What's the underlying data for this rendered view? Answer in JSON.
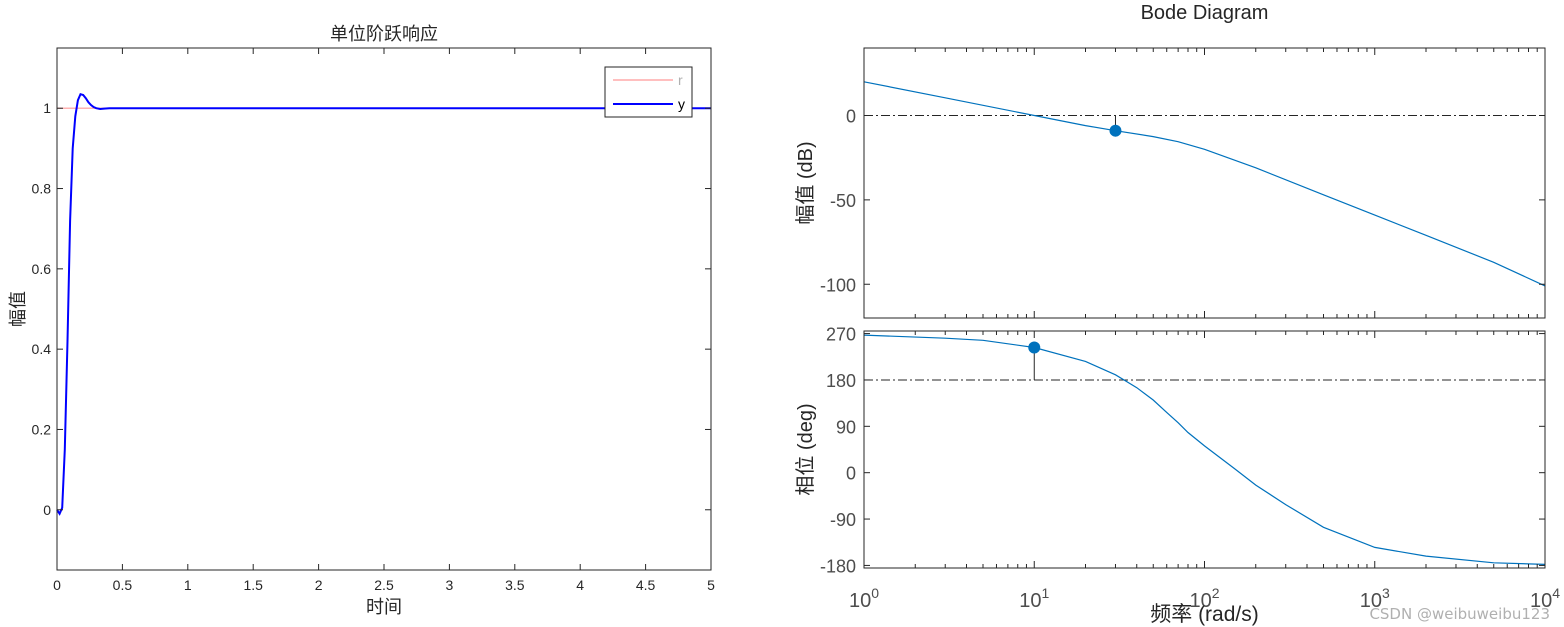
{
  "chart_data": [
    {
      "type": "line",
      "title": "单位阶跃响应",
      "xlabel": "时间",
      "ylabel": "幅值",
      "xlim": [
        0,
        5
      ],
      "ylim": [
        -0.15,
        1.15
      ],
      "xticks": [
        "0",
        "0.5",
        "1",
        "1.5",
        "2",
        "2.5",
        "3",
        "3.5",
        "4",
        "4.5",
        "5"
      ],
      "yticks": [
        "0",
        "0.2",
        "0.4",
        "0.6",
        "0.8",
        "1"
      ],
      "grid": false,
      "legend": {
        "placement": "top-right"
      },
      "series": [
        {
          "name": "r",
          "color": "#ff9999",
          "style": "solid",
          "x": [
            0,
            5
          ],
          "y": [
            1,
            1
          ]
        },
        {
          "name": "y",
          "color": "#0000ff",
          "style": "solid",
          "x": [
            0,
            0.02,
            0.04,
            0.06,
            0.08,
            0.1,
            0.12,
            0.14,
            0.16,
            0.18,
            0.2,
            0.22,
            0.24,
            0.26,
            0.28,
            0.3,
            0.33,
            0.36,
            0.4,
            0.5,
            1,
            2,
            3,
            4,
            5
          ],
          "y": [
            0,
            -0.01,
            0.005,
            0.15,
            0.42,
            0.72,
            0.9,
            0.98,
            1.02,
            1.035,
            1.033,
            1.025,
            1.015,
            1.008,
            1.003,
            1.0,
            0.998,
            0.999,
            1.0,
            1.0,
            1.0,
            1.0,
            1.0,
            1.0,
            1.0
          ]
        }
      ]
    },
    {
      "type": "line",
      "title": "Bode Diagram",
      "xlabel": "频率  (rad/s)",
      "xscale": "log",
      "xlim": [
        1,
        10000
      ],
      "xticks": [
        {
          "base": "10",
          "exp": "0"
        },
        {
          "base": "10",
          "exp": "1"
        },
        {
          "base": "10",
          "exp": "2"
        },
        {
          "base": "10",
          "exp": "3"
        },
        {
          "base": "10",
          "exp": "4"
        }
      ],
      "panels": [
        {
          "ylabel": "幅值 (dB)",
          "ylim": [
            -120,
            40
          ],
          "yticks": [
            "0",
            "-50",
            "-100"
          ],
          "reference": {
            "value": 0
          },
          "marker": {
            "x": 30,
            "y": -9,
            "line_to": 0
          },
          "series": [
            {
              "color": "#0072bd",
              "x": [
                1,
                3,
                10,
                20,
                30,
                50,
                70,
                100,
                200,
                500,
                1000,
                2000,
                5000,
                10000
              ],
              "y": [
                20,
                10.5,
                0,
                -6,
                -9,
                -12.5,
                -15.5,
                -20,
                -31,
                -47,
                -59,
                -71,
                -87,
                -101
              ]
            }
          ]
        },
        {
          "ylabel": "相位 (deg)",
          "ylim": [
            -185,
            275
          ],
          "yticks": [
            "270",
            "180",
            "90",
            "0",
            "-90",
            "-180"
          ],
          "reference": {
            "value": 180
          },
          "marker": {
            "x": 10,
            "y": 243,
            "line_to": 180
          },
          "series": [
            {
              "color": "#0072bd",
              "x": [
                1,
                3,
                5,
                10,
                20,
                30,
                40,
                50,
                60,
                70,
                80,
                100,
                150,
                200,
                300,
                500,
                1000,
                2000,
                5000,
                10000
              ],
              "y": [
                267,
                261,
                257,
                243,
                216,
                190,
                165,
                141,
                117,
                97,
                78,
                52,
                8,
                -24,
                -62,
                -106,
                -145,
                -162,
                -175,
                -178
              ]
            }
          ]
        }
      ]
    }
  ],
  "watermark": "CSDN @weibuweibu123"
}
